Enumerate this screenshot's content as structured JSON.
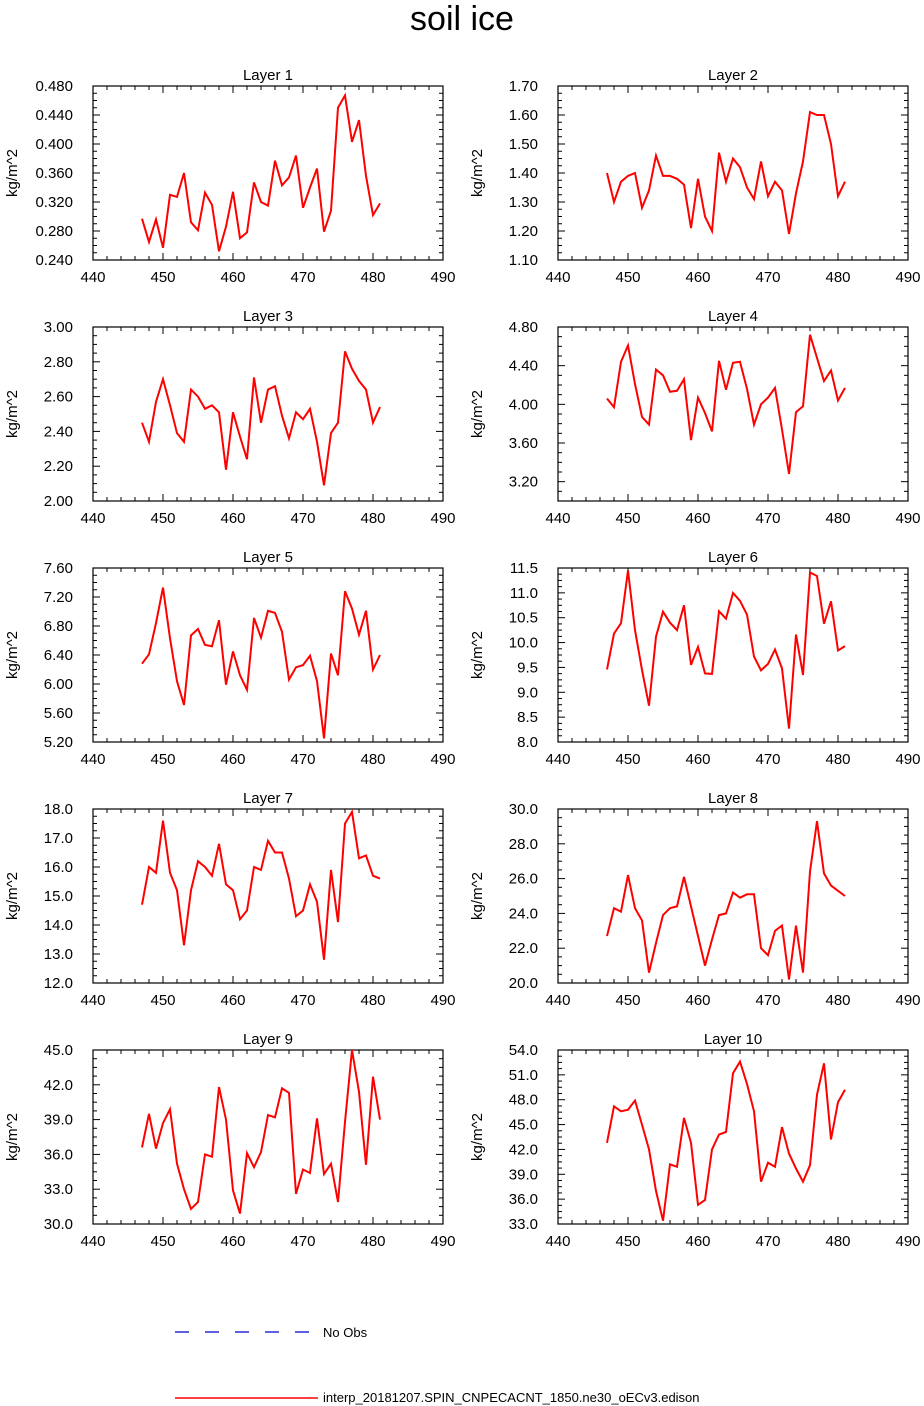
{
  "title": "soil ice",
  "colors": {
    "model": "#ff0000",
    "obs": "#0000cc",
    "axis": "#000000"
  },
  "legend": {
    "obs_label": "No Obs",
    "model_label": "interp_20181207.SPIN_CNPECACNT_1850.ne30_oECv3.edison"
  },
  "chart_data": [
    {
      "type": "line",
      "title": "Layer 1",
      "ylabel": "kg/m^2",
      "xlim": [
        440,
        490
      ],
      "xticks": [
        "440",
        "450",
        "460",
        "470",
        "480",
        "490"
      ],
      "ylim": [
        0.24,
        0.48
      ],
      "yticks": [
        "0.240",
        "0.280",
        "0.320",
        "0.360",
        "0.400",
        "0.440",
        "0.480"
      ],
      "x_start": 447,
      "values": [
        0.297,
        0.265,
        0.296,
        0.257,
        0.33,
        0.327,
        0.36,
        0.292,
        0.281,
        0.333,
        0.316,
        0.252,
        0.286,
        0.334,
        0.27,
        0.278,
        0.347,
        0.32,
        0.315,
        0.377,
        0.343,
        0.354,
        0.384,
        0.312,
        0.34,
        0.366,
        0.279,
        0.308,
        0.45,
        0.467,
        0.403,
        0.433,
        0.356,
        0.302,
        0.318
      ]
    },
    {
      "type": "line",
      "title": "Layer 2",
      "ylabel": "kg/m^2",
      "xlim": [
        440,
        490
      ],
      "xticks": [
        "440",
        "450",
        "460",
        "470",
        "480",
        "490"
      ],
      "ylim": [
        1.1,
        1.7
      ],
      "yticks": [
        "1.10",
        "1.20",
        "1.30",
        "1.40",
        "1.50",
        "1.60",
        "1.70"
      ],
      "x_start": 447,
      "values": [
        1.4,
        1.3,
        1.37,
        1.39,
        1.4,
        1.28,
        1.34,
        1.46,
        1.39,
        1.39,
        1.38,
        1.36,
        1.21,
        1.38,
        1.25,
        1.2,
        1.47,
        1.37,
        1.45,
        1.42,
        1.35,
        1.31,
        1.44,
        1.32,
        1.37,
        1.34,
        1.19,
        1.33,
        1.44,
        1.61,
        1.6,
        1.6,
        1.5,
        1.32,
        1.37
      ]
    },
    {
      "type": "line",
      "title": "Layer 3",
      "ylabel": "kg/m^2",
      "xlim": [
        440,
        490
      ],
      "xticks": [
        "440",
        "450",
        "460",
        "470",
        "480",
        "490"
      ],
      "ylim": [
        2.0,
        3.0
      ],
      "yticks": [
        "2.00",
        "2.20",
        "2.40",
        "2.60",
        "2.80",
        "3.00"
      ],
      "x_start": 447,
      "values": [
        2.45,
        2.34,
        2.57,
        2.7,
        2.55,
        2.39,
        2.34,
        2.64,
        2.6,
        2.53,
        2.55,
        2.51,
        2.18,
        2.51,
        2.37,
        2.24,
        2.71,
        2.45,
        2.64,
        2.66,
        2.49,
        2.36,
        2.51,
        2.47,
        2.53,
        2.34,
        2.09,
        2.39,
        2.45,
        2.86,
        2.76,
        2.69,
        2.64,
        2.45,
        2.54
      ]
    },
    {
      "type": "line",
      "title": "Layer 4",
      "ylabel": "kg/m^2",
      "xlim": [
        440,
        490
      ],
      "xticks": [
        "440",
        "450",
        "460",
        "470",
        "480",
        "490"
      ],
      "ylim": [
        3.0,
        4.8
      ],
      "yticks": [
        "3.20",
        "3.60",
        "4.00",
        "4.40",
        "4.80"
      ],
      "x_start": 447,
      "values": [
        4.06,
        3.97,
        4.44,
        4.61,
        4.21,
        3.87,
        3.79,
        4.36,
        4.3,
        4.13,
        4.14,
        4.26,
        3.63,
        4.07,
        3.91,
        3.72,
        4.45,
        4.15,
        4.43,
        4.44,
        4.16,
        3.79,
        4.0,
        4.07,
        4.17,
        3.74,
        3.28,
        3.92,
        3.98,
        4.72,
        4.48,
        4.24,
        4.35,
        4.04,
        4.17
      ]
    },
    {
      "type": "line",
      "title": "Layer 5",
      "ylabel": "kg/m^2",
      "xlim": [
        440,
        490
      ],
      "xticks": [
        "440",
        "450",
        "460",
        "470",
        "480",
        "490"
      ],
      "ylim": [
        5.2,
        7.6
      ],
      "yticks": [
        "5.20",
        "5.60",
        "6.00",
        "6.40",
        "6.80",
        "7.20",
        "7.60"
      ],
      "x_start": 447,
      "values": [
        6.28,
        6.41,
        6.84,
        7.33,
        6.63,
        6.04,
        5.71,
        6.67,
        6.76,
        6.54,
        6.52,
        6.88,
        5.99,
        6.45,
        6.12,
        5.92,
        6.91,
        6.64,
        7.01,
        6.98,
        6.72,
        6.06,
        6.23,
        6.26,
        6.39,
        6.04,
        5.25,
        6.42,
        6.12,
        7.28,
        7.04,
        6.68,
        7.01,
        6.2,
        6.4
      ]
    },
    {
      "type": "line",
      "title": "Layer 6",
      "ylabel": "kg/m^2",
      "xlim": [
        440,
        490
      ],
      "xticks": [
        "440",
        "450",
        "460",
        "470",
        "480",
        "490"
      ],
      "ylim": [
        8.0,
        11.5
      ],
      "yticks": [
        "8.0",
        "8.5",
        "9.0",
        "9.5",
        "10.0",
        "10.5",
        "11.0",
        "11.5"
      ],
      "x_start": 447,
      "values": [
        9.46,
        10.18,
        10.39,
        11.45,
        10.25,
        9.45,
        8.73,
        10.12,
        10.62,
        10.4,
        10.25,
        10.75,
        9.55,
        9.91,
        9.38,
        9.37,
        10.63,
        10.48,
        11.0,
        10.84,
        10.56,
        9.72,
        9.44,
        9.57,
        9.86,
        9.48,
        8.27,
        10.16,
        9.35,
        11.41,
        11.34,
        10.38,
        10.83,
        9.84,
        9.93
      ]
    },
    {
      "type": "line",
      "title": "Layer 7",
      "ylabel": "kg/m^2",
      "xlim": [
        440,
        490
      ],
      "xticks": [
        "440",
        "450",
        "460",
        "470",
        "480",
        "490"
      ],
      "ylim": [
        12.0,
        18.0
      ],
      "yticks": [
        "12.0",
        "13.0",
        "14.0",
        "15.0",
        "16.0",
        "17.0",
        "18.0"
      ],
      "x_start": 447,
      "values": [
        14.7,
        16.0,
        15.8,
        17.6,
        15.8,
        15.2,
        13.3,
        15.2,
        16.2,
        16.0,
        15.7,
        16.8,
        15.4,
        15.2,
        14.2,
        14.5,
        16.0,
        15.9,
        16.9,
        16.5,
        16.5,
        15.6,
        14.3,
        14.5,
        15.4,
        14.8,
        12.8,
        15.9,
        14.1,
        17.5,
        17.9,
        16.3,
        16.4,
        15.7,
        15.6
      ]
    },
    {
      "type": "line",
      "title": "Layer 8",
      "ylabel": "kg/m^2",
      "xlim": [
        440,
        490
      ],
      "xticks": [
        "440",
        "450",
        "460",
        "470",
        "480",
        "490"
      ],
      "ylim": [
        20.0,
        30.0
      ],
      "yticks": [
        "20.0",
        "22.0",
        "24.0",
        "26.0",
        "28.0",
        "30.0"
      ],
      "x_start": 447,
      "values": [
        22.7,
        24.3,
        24.1,
        26.2,
        24.3,
        23.6,
        20.6,
        22.3,
        23.9,
        24.3,
        24.4,
        26.1,
        24.4,
        22.7,
        21.0,
        22.5,
        23.9,
        24.0,
        25.2,
        24.9,
        25.1,
        25.1,
        22.0,
        21.6,
        23.0,
        23.3,
        20.2,
        23.3,
        20.6,
        26.4,
        29.3,
        26.3,
        25.6,
        25.3,
        25.0
      ]
    },
    {
      "type": "line",
      "title": "Layer 9",
      "ylabel": "kg/m^2",
      "xlim": [
        440,
        490
      ],
      "xticks": [
        "440",
        "450",
        "460",
        "470",
        "480",
        "490"
      ],
      "ylim": [
        30.0,
        45.0
      ],
      "yticks": [
        "30.0",
        "33.0",
        "36.0",
        "39.0",
        "42.0",
        "45.0"
      ],
      "x_start": 447,
      "values": [
        36.6,
        39.5,
        36.5,
        38.7,
        39.9,
        35.2,
        33.0,
        31.3,
        31.9,
        36.0,
        35.8,
        41.8,
        39.0,
        32.9,
        30.9,
        36.1,
        34.9,
        36.2,
        39.4,
        39.2,
        41.7,
        41.3,
        32.6,
        34.7,
        34.4,
        39.1,
        34.3,
        35.2,
        31.9,
        38.8,
        45.0,
        41.4,
        35.1,
        42.7,
        39.0
      ]
    },
    {
      "type": "line",
      "title": "Layer 10",
      "ylabel": "kg/m^2",
      "xlim": [
        440,
        490
      ],
      "xticks": [
        "440",
        "450",
        "460",
        "470",
        "480",
        "490"
      ],
      "ylim": [
        33.0,
        54.0
      ],
      "yticks": [
        "33.0",
        "36.0",
        "39.0",
        "42.0",
        "45.0",
        "48.0",
        "51.0",
        "54.0"
      ],
      "x_start": 447,
      "values": [
        42.8,
        47.2,
        46.6,
        46.8,
        47.9,
        45.0,
        42.0,
        37.0,
        33.4,
        40.2,
        39.9,
        45.8,
        42.8,
        35.3,
        35.9,
        42.0,
        43.8,
        44.1,
        51.2,
        52.6,
        49.9,
        46.6,
        38.1,
        40.4,
        39.9,
        44.7,
        41.5,
        39.7,
        38.1,
        40.1,
        48.6,
        52.4,
        43.2,
        47.7,
        49.2
      ]
    }
  ]
}
